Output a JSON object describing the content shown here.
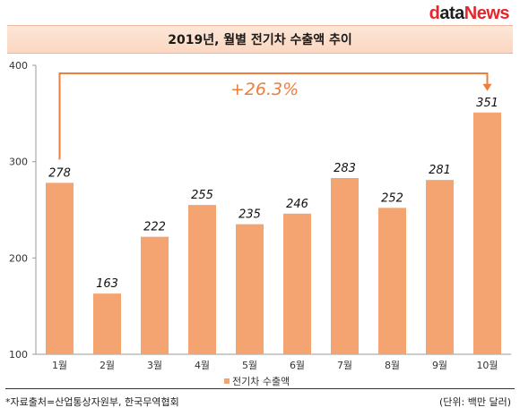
{
  "logo": {
    "d": "d",
    "ata": "ata",
    "news": "News"
  },
  "title": "2019년, 월별 전기차 수출액 추이",
  "source": "*자료출처=산업통상자원부, 한국무역협회",
  "unit": "(단위: 백만 달러)",
  "colors": {
    "bar": "#f4a471",
    "accent": "#ef7e3a",
    "title_bg": "#fbd9c4"
  },
  "chart_data": {
    "type": "bar",
    "categories": [
      "1월",
      "2월",
      "3월",
      "4월",
      "5월",
      "6월",
      "7월",
      "8월",
      "9월",
      "10월"
    ],
    "series": [
      {
        "name": "전기차 수출액",
        "values": [
          278,
          163,
          222,
          255,
          235,
          246,
          283,
          252,
          281,
          351
        ]
      }
    ],
    "ylim": [
      100,
      400
    ],
    "yticks": [
      100,
      200,
      300,
      400
    ],
    "legend": "bottom-center",
    "grid": false,
    "annotation": {
      "text": "+26.3%",
      "from": "1월",
      "to": "10월"
    }
  }
}
